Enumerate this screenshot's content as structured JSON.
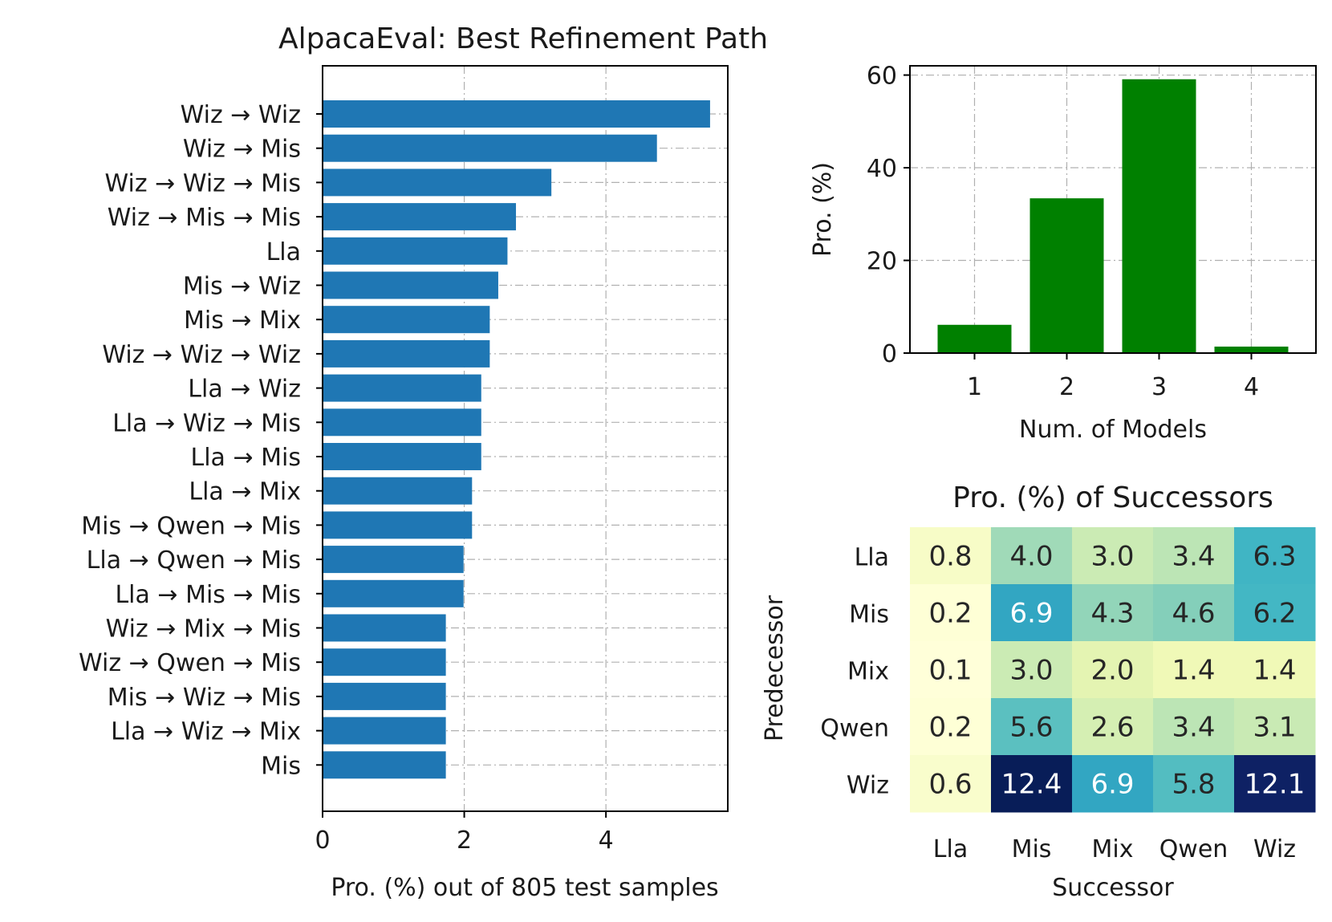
{
  "chart_data": [
    {
      "type": "bar",
      "orientation": "horizontal",
      "title": "AlpacaEval: Best Refinement Path",
      "xlabel": "Pro. (%) out of 805 test samples",
      "ylabel": "",
      "xlim": [
        0,
        5.72
      ],
      "xticks": [
        "0",
        "2",
        "4"
      ],
      "grid": true,
      "color": "#1f77b4",
      "categories": [
        "Wiz → Wiz",
        "Wiz → Mis",
        "Wiz → Wiz → Mis",
        "Wiz → Mis → Mis",
        "Lla",
        "Mis → Wiz",
        "Mis → Mix",
        "Wiz → Wiz → Wiz",
        "Lla → Wiz",
        "Lla → Wiz → Mis",
        "Lla → Mis",
        "Lla → Mix",
        "Mis → Qwen → Mis",
        "Lla → Qwen → Mis",
        "Lla → Mis → Mis",
        "Wiz → Mix → Mis",
        "Wiz → Qwen → Mis",
        "Mis → Wiz → Mis",
        "Lla → Wiz → Mix",
        "Mis"
      ],
      "values": [
        5.47,
        4.72,
        3.23,
        2.73,
        2.61,
        2.48,
        2.36,
        2.36,
        2.24,
        2.24,
        2.24,
        2.11,
        2.11,
        1.99,
        1.99,
        1.74,
        1.74,
        1.74,
        1.74,
        1.74
      ]
    },
    {
      "type": "bar",
      "title": "",
      "xlabel": "Num. of Models",
      "ylabel": "Pro. (%)",
      "ylim": [
        0,
        62
      ],
      "yticks": [
        "0",
        "20",
        "40",
        "60"
      ],
      "grid": true,
      "color": "#008000",
      "categories": [
        "1",
        "2",
        "3",
        "4"
      ],
      "values": [
        6.1,
        33.4,
        59.1,
        1.4
      ]
    },
    {
      "type": "heatmap",
      "title": "Pro. (%) of Successors",
      "xlabel": "Successor",
      "ylabel": "Predecessor",
      "colormap": "YlGnBu",
      "vmin": 0.1,
      "vmax": 12.4,
      "columns": [
        "Lla",
        "Mis",
        "Mix",
        "Qwen",
        "Wiz"
      ],
      "rows": [
        "Lla",
        "Mis",
        "Mix",
        "Qwen",
        "Wiz"
      ],
      "values": [
        [
          "0.8",
          "4.0",
          "3.0",
          "3.4",
          "6.3"
        ],
        [
          "0.2",
          "6.9",
          "4.3",
          "4.6",
          "6.2"
        ],
        [
          "0.1",
          "3.0",
          "2.0",
          "1.4",
          "1.4"
        ],
        [
          "0.2",
          "5.6",
          "2.6",
          "3.4",
          "3.1"
        ],
        [
          "0.6",
          "12.4",
          "6.9",
          "5.8",
          "12.1"
        ]
      ]
    }
  ]
}
